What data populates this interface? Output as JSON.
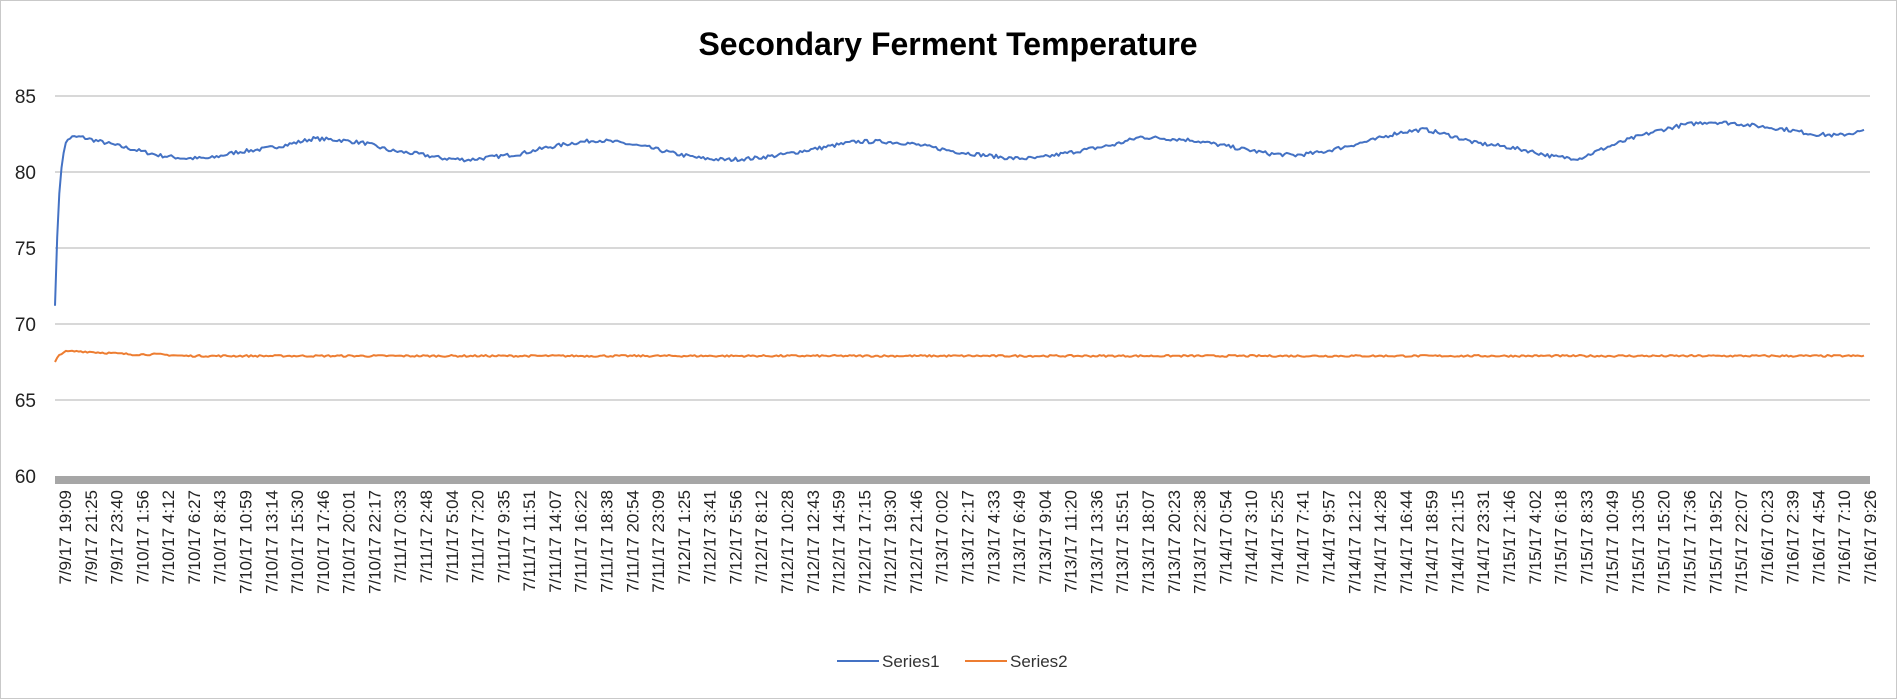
{
  "chart_data": {
    "type": "line",
    "title": "Secondary Ferment Temperature",
    "xlabel": "",
    "ylabel": "",
    "ylim": [
      60,
      85
    ],
    "yticks": [
      60,
      65,
      70,
      75,
      80,
      85
    ],
    "grid": true,
    "legend": "bottom",
    "x_tick_labels": [
      "7/9/17  19:09",
      "7/9/17  21:25",
      "7/9/17  23:40",
      "7/10/17  1:56",
      "7/10/17  4:12",
      "7/10/17  6:27",
      "7/10/17  8:43",
      "7/10/17  10:59",
      "7/10/17  13:14",
      "7/10/17  15:30",
      "7/10/17  17:46",
      "7/10/17  20:01",
      "7/10/17  22:17",
      "7/11/17  0:33",
      "7/11/17  2:48",
      "7/11/17  5:04",
      "7/11/17  7:20",
      "7/11/17  9:35",
      "7/11/17 11:51",
      "7/11/17  14:07",
      "7/11/17  16:22",
      "7/11/17  18:38",
      "7/11/17  20:54",
      "7/11/17  23:09",
      "7/12/17  1:25",
      "7/12/17  3:41",
      "7/12/17  5:56",
      "7/12/17  8:12",
      "7/12/17  10:28",
      "7/12/17  12:43",
      "7/12/17  14:59",
      "7/12/17  17:15",
      "7/12/17  19:30",
      "7/12/17  21:46",
      "7/13/17  0:02",
      "7/13/17  2:17",
      "7/13/17  4:33",
      "7/13/17  6:49",
      "7/13/17  9:04",
      "7/13/17 11:20",
      "7/13/17  13:36",
      "7/13/17  15:51",
      "7/13/17  18:07",
      "7/13/17  20:23",
      "7/13/17  22:38",
      "7/14/17  0:54",
      "7/14/17  3:10",
      "7/14/17  5:25",
      "7/14/17  7:41",
      "7/14/17  9:57",
      "7/14/17  12:12",
      "7/14/17  14:28",
      "7/14/17  16:44",
      "7/14/17  18:59",
      "7/14/17  21:15",
      "7/14/17  23:31",
      "7/15/17  1:46",
      "7/15/17  4:02",
      "7/15/17  6:18",
      "7/15/17  8:33",
      "7/15/17  10:49",
      "7/15/17  13:05",
      "7/15/17  15:20",
      "7/15/17  17:36",
      "7/15/17  19:52",
      "7/15/17  22:07",
      "7/16/17  0:23",
      "7/16/17  2:39",
      "7/16/17  4:54",
      "7/16/17  7:10",
      "7/16/17  9:26"
    ],
    "series": [
      {
        "name": "Series1",
        "color": "#4472C4",
        "values": [
          71.2,
          82.3,
          81.9,
          81.5,
          81.1,
          80.9,
          80.9,
          81.3,
          81.5,
          81.8,
          82.2,
          82.1,
          81.9,
          81.4,
          81.2,
          80.9,
          80.8,
          81.0,
          81.2,
          81.6,
          81.9,
          82.1,
          81.9,
          81.6,
          81.2,
          80.9,
          80.8,
          80.9,
          81.1,
          81.4,
          81.7,
          82.0,
          82.0,
          81.9,
          81.6,
          81.3,
          81.1,
          80.9,
          80.9,
          81.2,
          81.5,
          81.8,
          82.3,
          82.2,
          82.1,
          81.8,
          81.5,
          81.2,
          81.1,
          81.3,
          81.7,
          82.1,
          82.6,
          82.8,
          82.4,
          81.9,
          81.7,
          81.4,
          81.0,
          80.9,
          81.6,
          82.2,
          82.7,
          83.1,
          83.3,
          83.2,
          83.0,
          82.8,
          82.5,
          82.4,
          82.7
        ]
      },
      {
        "name": "Series2",
        "color": "#ED7D31",
        "values": [
          67.5,
          68.2,
          68.1,
          68.0,
          68.0,
          67.9,
          67.9,
          67.9,
          67.9,
          67.9,
          67.9,
          67.9,
          67.9,
          67.9,
          67.9,
          67.9,
          67.9,
          67.9,
          67.9,
          67.9,
          67.9,
          67.9,
          67.9,
          67.9,
          67.9,
          67.9,
          67.9,
          67.9,
          67.9,
          67.9,
          67.9,
          67.9,
          67.9,
          67.9,
          67.9,
          67.9,
          67.9,
          67.9,
          67.9,
          67.9,
          67.9,
          67.9,
          67.9,
          67.9,
          67.9,
          67.9,
          67.9,
          67.9,
          67.9,
          67.9,
          67.9,
          67.9,
          67.9,
          67.9,
          67.9,
          67.9,
          67.9,
          67.9,
          67.9,
          67.9,
          67.9,
          67.9,
          67.9,
          67.9,
          67.9,
          67.9,
          67.9,
          67.9,
          67.9,
          67.9,
          67.9
        ]
      }
    ]
  },
  "colors": {
    "gridline": "#b0b0b0",
    "axis_band": "#a6a6a6"
  }
}
